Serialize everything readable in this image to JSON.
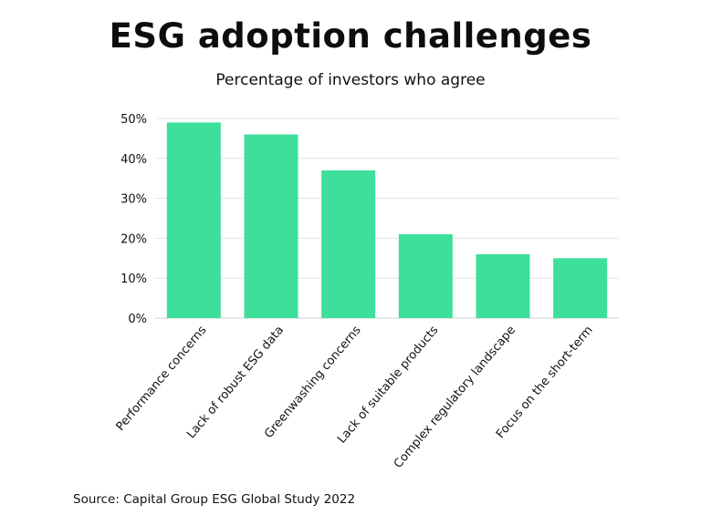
{
  "chart_data": {
    "type": "bar",
    "title": "ESG adoption challenges",
    "subtitle": "Percentage of investors who agree",
    "categories": [
      "Performance concerns",
      "Lack of robust ESG data",
      "Greenwashing concerns",
      "Lack of suitable products",
      "Complex regulatory landscape",
      "Focus on the short-term"
    ],
    "values": [
      49,
      46,
      37,
      21,
      16,
      15
    ],
    "value_unit": "%",
    "ylim": [
      0,
      50
    ],
    "yticks": [
      0,
      10,
      20,
      30,
      40,
      50
    ],
    "ytick_labels": [
      "0%",
      "10%",
      "20%",
      "30%",
      "40%",
      "50%"
    ],
    "xlabel": "",
    "ylabel": "",
    "grid": true,
    "bar_color": "#3ddf9b",
    "grid_color": "#e3e3e3"
  },
  "source": "Source: Capital Group ESG Global Study 2022"
}
